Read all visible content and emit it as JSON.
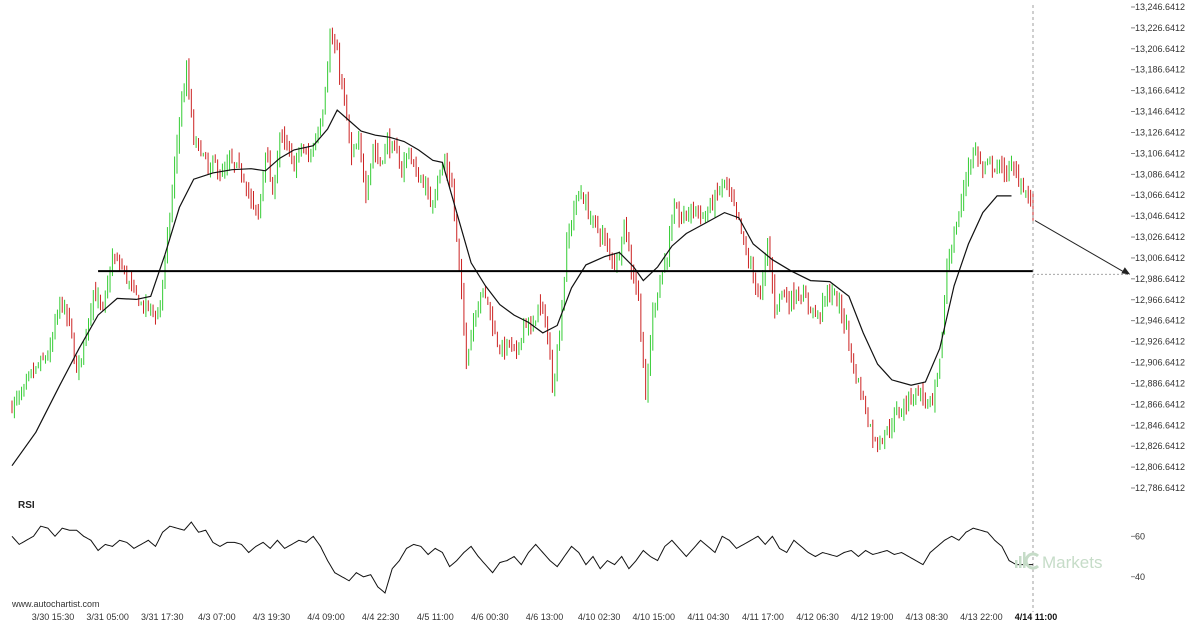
{
  "chart_data": {
    "type": "candlestick",
    "rsi_label": "RSI",
    "source": "www.autochartist.com",
    "watermark": "Markets",
    "colors": {
      "up": "#33cc33",
      "down": "#cc2222",
      "ma": "#111111",
      "level": "#000000",
      "rsi": "#111111"
    },
    "price_ylim": [
      12786.6412,
      13246.6412
    ],
    "price_ticks": [
      "13,246.6412",
      "13,226.6412",
      "13,206.6412",
      "13,186.6412",
      "13,166.6412",
      "13,146.6412",
      "13,126.6412",
      "13,106.6412",
      "13,086.6412",
      "13,066.6412",
      "13,046.6412",
      "13,026.6412",
      "13,006.6412",
      "12,986.6412",
      "12,966.6412",
      "12,946.6412",
      "12,926.6412",
      "12,906.6412",
      "12,886.6412",
      "12,866.6412",
      "12,846.6412",
      "12,826.6412",
      "12,806.6412",
      "12,786.6412"
    ],
    "rsi_ylim": [
      30,
      72
    ],
    "rsi_ticks": [
      "60",
      "40"
    ],
    "x_ticks": [
      "3/30 15:30",
      "3/31 05:00",
      "3/31 17:30",
      "4/3 07:00",
      "4/3 19:30",
      "4/4 09:00",
      "4/4 22:30",
      "4/5 11:00",
      "4/6 00:30",
      "4/6 13:00",
      "4/10 02:30",
      "4/10 15:00",
      "4/11 04:30",
      "4/11 17:00",
      "4/12 06:30",
      "4/12 19:00",
      "4/13 08:30",
      "4/13 22:00",
      "4/14 11:00"
    ],
    "x_tick_last_bold": true,
    "support_level": 12994,
    "forecast_target": 12991,
    "price_path": [
      [
        0,
        12866
      ],
      [
        4,
        12875
      ],
      [
        8,
        12895
      ],
      [
        12,
        12905
      ],
      [
        16,
        12918
      ],
      [
        20,
        12965
      ],
      [
        24,
        12945
      ],
      [
        27,
        12896
      ],
      [
        30,
        12925
      ],
      [
        34,
        12975
      ],
      [
        38,
        12955
      ],
      [
        42,
        13006
      ],
      [
        46,
        12998
      ],
      [
        50,
        12977
      ],
      [
        54,
        12962
      ],
      [
        58,
        12958
      ],
      [
        61,
        12950
      ],
      [
        64,
        13002
      ],
      [
        67,
        13070
      ],
      [
        70,
        13140
      ],
      [
        73,
        13185
      ],
      [
        76,
        13118
      ],
      [
        79,
        13110
      ],
      [
        82,
        13090
      ],
      [
        85,
        13096
      ],
      [
        88,
        13085
      ],
      [
        91,
        13098
      ],
      [
        94,
        13092
      ],
      [
        97,
        13085
      ],
      [
        100,
        13060
      ],
      [
        103,
        13045
      ],
      [
        106,
        13112
      ],
      [
        109,
        13065
      ],
      [
        112,
        13125
      ],
      [
        115,
        13110
      ],
      [
        118,
        13095
      ],
      [
        121,
        13112
      ],
      [
        124,
        13102
      ],
      [
        127,
        13120
      ],
      [
        130,
        13150
      ],
      [
        133,
        13218
      ],
      [
        136,
        13200
      ],
      [
        139,
        13155
      ],
      [
        142,
        13102
      ],
      [
        145,
        13115
      ],
      [
        148,
        13072
      ],
      [
        151,
        13112
      ],
      [
        154,
        13098
      ],
      [
        157,
        13118
      ],
      [
        160,
        13108
      ],
      [
        163,
        13092
      ],
      [
        166,
        13110
      ],
      [
        169,
        13085
      ],
      [
        172,
        13080
      ],
      [
        175,
        13058
      ],
      [
        178,
        13082
      ],
      [
        181,
        13098
      ],
      [
        184,
        13075
      ],
      [
        187,
        12996
      ],
      [
        190,
        12912
      ],
      [
        193,
        12948
      ],
      [
        196,
        12975
      ],
      [
        199,
        12965
      ],
      [
        202,
        12932
      ],
      [
        205,
        12918
      ],
      [
        208,
        12925
      ],
      [
        211,
        12912
      ],
      [
        214,
        12948
      ],
      [
        217,
        12935
      ],
      [
        220,
        12960
      ],
      [
        223,
        12950
      ],
      [
        226,
        12885
      ],
      [
        229,
        12935
      ],
      [
        232,
        13018
      ],
      [
        235,
        13055
      ],
      [
        238,
        13070
      ],
      [
        241,
        13050
      ],
      [
        244,
        13036
      ],
      [
        247,
        13028
      ],
      [
        250,
        13010
      ],
      [
        253,
        13002
      ],
      [
        256,
        13042
      ],
      [
        259,
        12998
      ],
      [
        262,
        12970
      ],
      [
        265,
        12870
      ],
      [
        268,
        12955
      ],
      [
        271,
        12985
      ],
      [
        274,
        13012
      ],
      [
        277,
        13050
      ],
      [
        280,
        13045
      ],
      [
        283,
        13050
      ],
      [
        286,
        13055
      ],
      [
        289,
        13045
      ],
      [
        292,
        13055
      ],
      [
        295,
        13068
      ],
      [
        298,
        13080
      ],
      [
        301,
        13060
      ],
      [
        304,
        13040
      ],
      [
        307,
        13010
      ],
      [
        310,
        12990
      ],
      [
        313,
        12968
      ],
      [
        316,
        13020
      ],
      [
        319,
        12960
      ],
      [
        322,
        12975
      ],
      [
        325,
        12965
      ],
      [
        328,
        12975
      ],
      [
        331,
        12968
      ],
      [
        334,
        12960
      ],
      [
        337,
        12950
      ],
      [
        340,
        12968
      ],
      [
        343,
        12975
      ],
      [
        346,
        12960
      ],
      [
        349,
        12940
      ],
      [
        352,
        12900
      ],
      [
        355,
        12880
      ],
      [
        358,
        12852
      ],
      [
        361,
        12830
      ],
      [
        364,
        12836
      ],
      [
        367,
        12845
      ],
      [
        370,
        12858
      ],
      [
        373,
        12865
      ],
      [
        376,
        12875
      ],
      [
        379,
        12880
      ],
      [
        382,
        12870
      ],
      [
        385,
        12866
      ],
      [
        388,
        12905
      ],
      [
        391,
        13000
      ],
      [
        394,
        13028
      ],
      [
        397,
        13060
      ],
      [
        400,
        13096
      ],
      [
        403,
        13110
      ],
      [
        406,
        13090
      ],
      [
        409,
        13096
      ],
      [
        412,
        13094
      ],
      [
        415,
        13090
      ],
      [
        418,
        13092
      ],
      [
        421,
        13082
      ],
      [
        424,
        13070
      ],
      [
        427,
        13052
      ]
    ],
    "ma_path": [
      [
        0,
        12808
      ],
      [
        10,
        12840
      ],
      [
        20,
        12885
      ],
      [
        28,
        12920
      ],
      [
        36,
        12952
      ],
      [
        44,
        12968
      ],
      [
        52,
        12967
      ],
      [
        58,
        12970
      ],
      [
        64,
        13010
      ],
      [
        70,
        13055
      ],
      [
        76,
        13082
      ],
      [
        84,
        13088
      ],
      [
        92,
        13091
      ],
      [
        100,
        13092
      ],
      [
        106,
        13090
      ],
      [
        112,
        13102
      ],
      [
        118,
        13110
      ],
      [
        126,
        13114
      ],
      [
        132,
        13130
      ],
      [
        136,
        13148
      ],
      [
        140,
        13140
      ],
      [
        146,
        13128
      ],
      [
        152,
        13124
      ],
      [
        158,
        13122
      ],
      [
        164,
        13118
      ],
      [
        170,
        13110
      ],
      [
        176,
        13100
      ],
      [
        180,
        13098
      ],
      [
        186,
        13050
      ],
      [
        192,
        13002
      ],
      [
        198,
        12980
      ],
      [
        204,
        12962
      ],
      [
        210,
        12952
      ],
      [
        216,
        12945
      ],
      [
        222,
        12935
      ],
      [
        228,
        12942
      ],
      [
        234,
        12978
      ],
      [
        240,
        13000
      ],
      [
        248,
        13008
      ],
      [
        254,
        13012
      ],
      [
        260,
        12998
      ],
      [
        264,
        12985
      ],
      [
        270,
        12998
      ],
      [
        276,
        13018
      ],
      [
        282,
        13030
      ],
      [
        290,
        13040
      ],
      [
        298,
        13050
      ],
      [
        304,
        13045
      ],
      [
        310,
        13020
      ],
      [
        318,
        13005
      ],
      [
        326,
        12994
      ],
      [
        334,
        12985
      ],
      [
        342,
        12984
      ],
      [
        350,
        12970
      ],
      [
        356,
        12935
      ],
      [
        362,
        12905
      ],
      [
        368,
        12890
      ],
      [
        376,
        12885
      ],
      [
        382,
        12888
      ],
      [
        388,
        12920
      ],
      [
        394,
        12980
      ],
      [
        400,
        13020
      ],
      [
        406,
        13050
      ],
      [
        412,
        13066
      ],
      [
        418,
        13066
      ]
    ],
    "rsi_path": [
      [
        0,
        60
      ],
      [
        3,
        56
      ],
      [
        6,
        58
      ],
      [
        9,
        60
      ],
      [
        12,
        65
      ],
      [
        15,
        64
      ],
      [
        18,
        60
      ],
      [
        21,
        64
      ],
      [
        24,
        63
      ],
      [
        27,
        63
      ],
      [
        30,
        60
      ],
      [
        33,
        58
      ],
      [
        36,
        53
      ],
      [
        39,
        56
      ],
      [
        42,
        55
      ],
      [
        45,
        58
      ],
      [
        48,
        57
      ],
      [
        51,
        54
      ],
      [
        54,
        56
      ],
      [
        57,
        58
      ],
      [
        60,
        55
      ],
      [
        63,
        62
      ],
      [
        66,
        65
      ],
      [
        69,
        64
      ],
      [
        72,
        63
      ],
      [
        75,
        67
      ],
      [
        78,
        62
      ],
      [
        81,
        63
      ],
      [
        84,
        57
      ],
      [
        87,
        55
      ],
      [
        90,
        57
      ],
      [
        93,
        57
      ],
      [
        96,
        56
      ],
      [
        99,
        52
      ],
      [
        102,
        55
      ],
      [
        105,
        57
      ],
      [
        108,
        54
      ],
      [
        111,
        58
      ],
      [
        114,
        54
      ],
      [
        117,
        56
      ],
      [
        120,
        58
      ],
      [
        123,
        57
      ],
      [
        126,
        60
      ],
      [
        129,
        55
      ],
      [
        132,
        48
      ],
      [
        135,
        42
      ],
      [
        138,
        40
      ],
      [
        141,
        38
      ],
      [
        144,
        42
      ],
      [
        147,
        40
      ],
      [
        150,
        41
      ],
      [
        153,
        35
      ],
      [
        156,
        32
      ],
      [
        159,
        44
      ],
      [
        162,
        48
      ],
      [
        165,
        54
      ],
      [
        168,
        56
      ],
      [
        171,
        55
      ],
      [
        174,
        51
      ],
      [
        177,
        54
      ],
      [
        180,
        52
      ],
      [
        183,
        45
      ],
      [
        186,
        48
      ],
      [
        189,
        52
      ],
      [
        192,
        55
      ],
      [
        195,
        50
      ],
      [
        198,
        46
      ],
      [
        201,
        42
      ],
      [
        204,
        47
      ],
      [
        207,
        48
      ],
      [
        210,
        50
      ],
      [
        213,
        46
      ],
      [
        216,
        52
      ],
      [
        219,
        56
      ],
      [
        222,
        52
      ],
      [
        225,
        48
      ],
      [
        228,
        45
      ],
      [
        231,
        50
      ],
      [
        234,
        55
      ],
      [
        237,
        52
      ],
      [
        240,
        46
      ],
      [
        243,
        50
      ],
      [
        246,
        44
      ],
      [
        249,
        48
      ],
      [
        252,
        46
      ],
      [
        255,
        50
      ],
      [
        258,
        44
      ],
      [
        261,
        48
      ],
      [
        264,
        53
      ],
      [
        267,
        50
      ],
      [
        270,
        48
      ],
      [
        273,
        55
      ],
      [
        276,
        58
      ],
      [
        279,
        54
      ],
      [
        282,
        50
      ],
      [
        285,
        54
      ],
      [
        288,
        58
      ],
      [
        291,
        55
      ],
      [
        294,
        52
      ],
      [
        297,
        60
      ],
      [
        300,
        58
      ],
      [
        303,
        54
      ],
      [
        306,
        56
      ],
      [
        309,
        58
      ],
      [
        312,
        60
      ],
      [
        315,
        56
      ],
      [
        318,
        60
      ],
      [
        321,
        54
      ],
      [
        324,
        52
      ],
      [
        327,
        58
      ],
      [
        330,
        55
      ],
      [
        333,
        52
      ],
      [
        336,
        50
      ],
      [
        339,
        52
      ],
      [
        342,
        51
      ],
      [
        345,
        50
      ],
      [
        348,
        52
      ],
      [
        351,
        53
      ],
      [
        354,
        50
      ],
      [
        357,
        53
      ],
      [
        360,
        51
      ],
      [
        363,
        52
      ],
      [
        366,
        53
      ],
      [
        369,
        51
      ],
      [
        372,
        52
      ],
      [
        375,
        50
      ],
      [
        378,
        48
      ],
      [
        381,
        46
      ],
      [
        384,
        52
      ],
      [
        387,
        55
      ],
      [
        390,
        58
      ],
      [
        393,
        60
      ],
      [
        396,
        58
      ],
      [
        399,
        62
      ],
      [
        402,
        64
      ],
      [
        405,
        63
      ],
      [
        408,
        62
      ],
      [
        411,
        58
      ],
      [
        414,
        55
      ],
      [
        417,
        48
      ],
      [
        420,
        46
      ]
    ]
  }
}
